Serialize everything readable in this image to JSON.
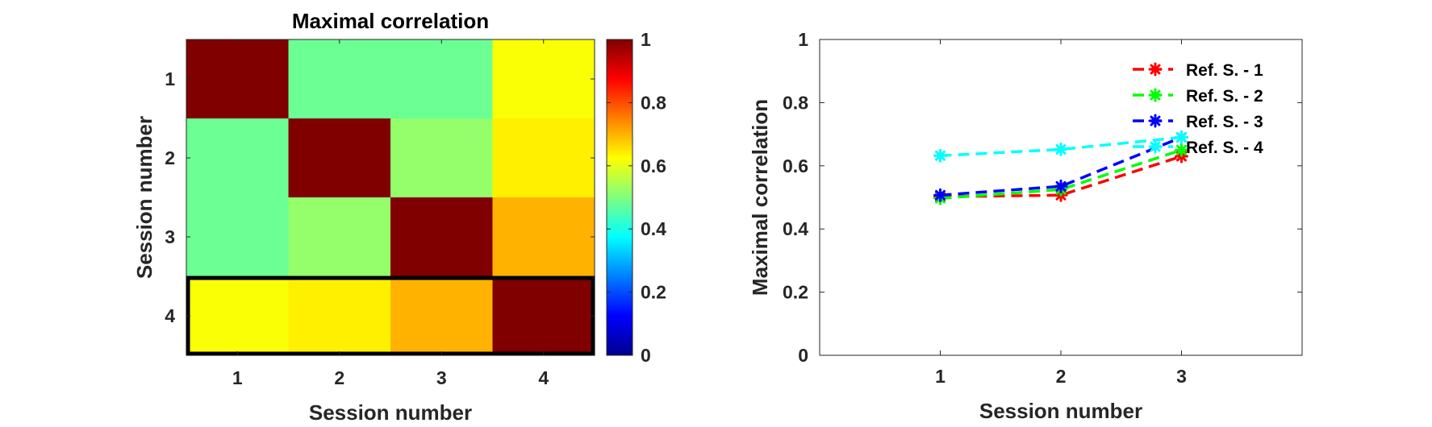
{
  "chart_data": [
    {
      "type": "heatmap",
      "title": "Maximal correlation",
      "xlabel": "Session number",
      "ylabel": "Session number",
      "x_categories": [
        "1",
        "2",
        "3",
        "4"
      ],
      "y_categories": [
        "1",
        "2",
        "3",
        "4"
      ],
      "values": [
        [
          1.0,
          0.48,
          0.48,
          0.62
        ],
        [
          0.48,
          1.0,
          0.52,
          0.64
        ],
        [
          0.48,
          0.52,
          1.0,
          0.7
        ],
        [
          0.62,
          0.64,
          0.7,
          1.0
        ]
      ],
      "colorbar": {
        "colormap": "jet",
        "clim": [
          0,
          1
        ],
        "ticks": [
          "0",
          "0.2",
          "0.4",
          "0.6",
          "0.8",
          "1"
        ]
      },
      "highlight": {
        "row": "4",
        "color": "#000000"
      }
    },
    {
      "type": "line",
      "xlabel": "Session number",
      "ylabel": "Maximal correlation",
      "x": [
        1,
        2,
        3
      ],
      "xlim": [
        0,
        4
      ],
      "ylim": [
        0,
        1
      ],
      "x_ticks": [
        "1",
        "2",
        "3"
      ],
      "y_ticks": [
        "0",
        "0.2",
        "0.4",
        "0.6",
        "0.8",
        "1"
      ],
      "legend_position": "top-right",
      "series": [
        {
          "name": "Ref. S. - 1",
          "color": "#ff0000",
          "values": [
            0.502,
            0.507,
            0.63
          ]
        },
        {
          "name": "Ref. S. - 2",
          "color": "#00ff00",
          "values": [
            0.497,
            0.525,
            0.65
          ]
        },
        {
          "name": "Ref. S. - 3",
          "color": "#0000ff",
          "values": [
            0.507,
            0.535,
            0.69
          ]
        },
        {
          "name": "Ref. S. - 4",
          "color": "#00ffff",
          "values": [
            0.632,
            0.652,
            0.69
          ]
        }
      ]
    }
  ]
}
